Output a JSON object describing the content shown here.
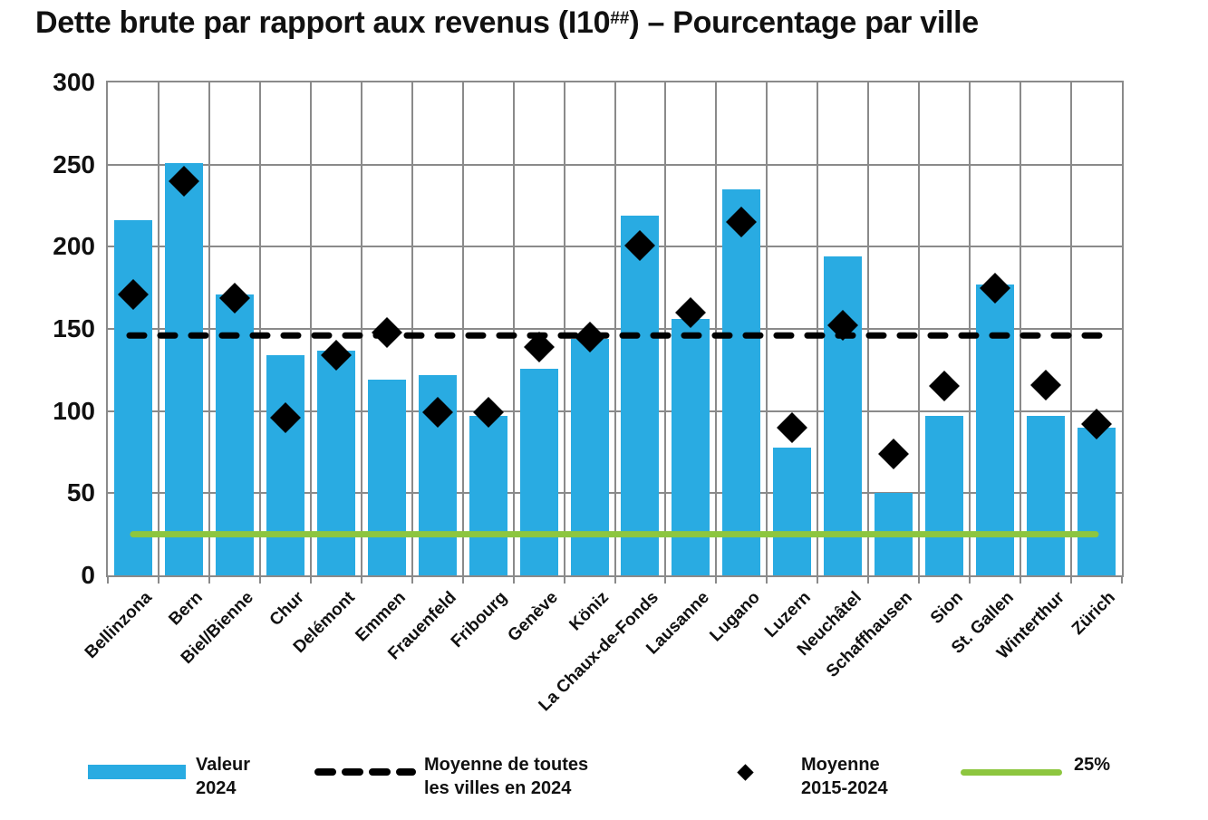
{
  "title": {
    "part1": "Dette brute par rapport aux revenus (I10",
    "sup": "##",
    "part2": ") – Pourcentage par ville"
  },
  "colors": {
    "bar": "#29ABE2",
    "green_line": "#8DC63F",
    "dashed_line": "#000000",
    "diamond": "#000000",
    "grid": "#8a8a8a",
    "text": "#111111"
  },
  "chart_data": {
    "type": "bar",
    "title": "Dette brute par rapport aux revenus (I10##) – Pourcentage par ville",
    "xlabel": "",
    "ylabel": "",
    "ylim": [
      0,
      300
    ],
    "yticks": [
      0,
      50,
      100,
      150,
      200,
      250,
      300
    ],
    "grid": true,
    "legend_position": "bottom",
    "categories": [
      "Bellinzona",
      "Bern",
      "Biel/Bienne",
      "Chur",
      "Delémont",
      "Emmen",
      "Frauenfeld",
      "Fribourg",
      "Genève",
      "Köniz",
      "La Chaux-de-Fonds",
      "Lausanne",
      "Lugano",
      "Luzern",
      "Neuchâtel",
      "Schaffhausen",
      "Sion",
      "St. Gallen",
      "Winterthur",
      "Zürich"
    ],
    "series": [
      {
        "name": "Valeur 2024",
        "type": "bar",
        "values": [
          216,
          251,
          171,
          134,
          137,
          119,
          122,
          97,
          126,
          144,
          219,
          156,
          235,
          78,
          194,
          50,
          97,
          177,
          97,
          90
        ]
      },
      {
        "name": "Moyenne de toutes les villes en 2024",
        "type": "dashed-line",
        "value": 146
      },
      {
        "name": "Moyenne 2015-2024",
        "type": "scatter-diamond",
        "values": [
          171,
          240,
          169,
          96,
          134,
          148,
          99,
          99,
          139,
          145,
          201,
          160,
          215,
          90,
          152,
          74,
          115,
          175,
          116,
          92
        ]
      },
      {
        "name": "25%",
        "type": "line",
        "value": 25
      }
    ]
  },
  "legend": {
    "items": [
      {
        "line1": "Valeur",
        "line2": "2024"
      },
      {
        "line1": "Moyenne de toutes",
        "line2": "les villes en 2024"
      },
      {
        "line1": "Moyenne",
        "line2": "2015-2024"
      },
      {
        "line1": "25%",
        "line2": ""
      }
    ]
  }
}
